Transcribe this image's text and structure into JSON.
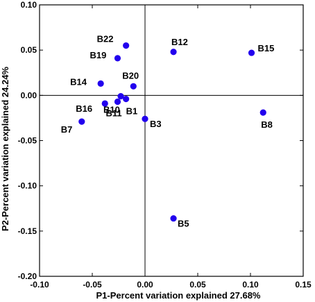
{
  "chart_data": {
    "type": "scatter",
    "title": "",
    "xlabel": "P1-Percent variation explained 27.68%",
    "ylabel": "P2-Percent variation explained 24.24%",
    "xlim": [
      -0.1,
      0.15
    ],
    "ylim": [
      -0.2,
      0.1
    ],
    "x_ticks": [
      "-0.10",
      "-0.05",
      "0.00",
      "0.05",
      "0.10",
      "0.15"
    ],
    "y_ticks": [
      "0.10",
      "0.05",
      "0.00",
      "-0.05",
      "-0.10",
      "-0.15",
      "-0.20"
    ],
    "reference_lines": {
      "x": 0,
      "y": 0
    },
    "grid": false,
    "marker_color": "#2200ee",
    "points": [
      {
        "label": "B22",
        "x": -0.018,
        "y": 0.055
      },
      {
        "label": "B12",
        "x": 0.027,
        "y": 0.048
      },
      {
        "label": "B15",
        "x": 0.101,
        "y": 0.047
      },
      {
        "label": "B19",
        "x": -0.026,
        "y": 0.041
      },
      {
        "label": "B14",
        "x": -0.042,
        "y": 0.013
      },
      {
        "label": "B20",
        "x": -0.011,
        "y": 0.01
      },
      {
        "label": "B16",
        "x": -0.038,
        "y": -0.009
      },
      {
        "label": "B10",
        "x": -0.023,
        "y": -0.001
      },
      {
        "label": "B1",
        "x": -0.018,
        "y": -0.004
      },
      {
        "label": "B3",
        "x": 0.0,
        "y": -0.026
      },
      {
        "label": "B7",
        "x": -0.06,
        "y": -0.029
      },
      {
        "label": "B11",
        "x": -0.026,
        "y": -0.007
      },
      {
        "label": "B8",
        "x": 0.112,
        "y": -0.019
      },
      {
        "label": "B5",
        "x": 0.027,
        "y": -0.136
      }
    ]
  }
}
